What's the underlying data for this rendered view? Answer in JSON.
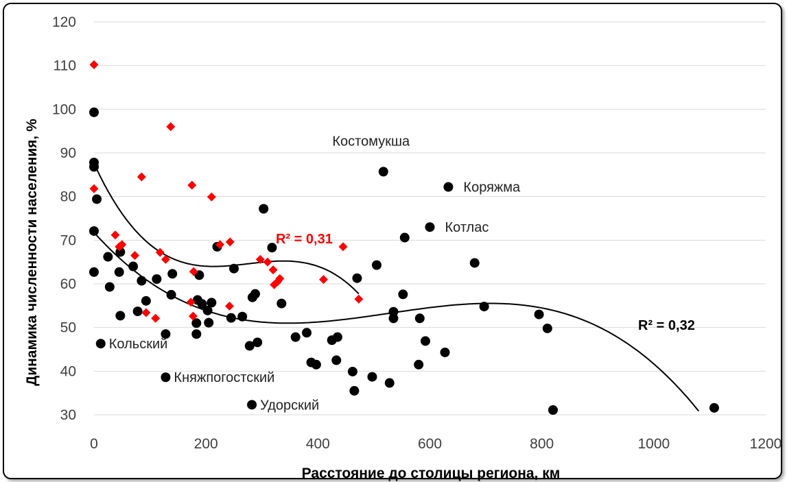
{
  "chart_data": {
    "type": "scatter",
    "title": "",
    "xlabel": "Расстояние до столицы региона, км",
    "ylabel": "Динамика численности населения, %",
    "xlim": [
      0,
      1200
    ],
    "ylim": [
      30,
      120
    ],
    "xticks": [
      0,
      200,
      400,
      600,
      800,
      1000,
      1200
    ],
    "yticks": [
      30,
      40,
      50,
      60,
      70,
      80,
      90,
      100,
      110,
      120
    ],
    "grid": "horizontal",
    "legend": "none",
    "series": [
      {
        "marker": "circle",
        "color": "#000000",
        "r2": "R² = 0,32",
        "points": [
          [
            0,
            99.3
          ],
          [
            0,
            87.8
          ],
          [
            0,
            86.8
          ],
          [
            0,
            72.1
          ],
          [
            0,
            62.7
          ],
          [
            5,
            79.4
          ],
          [
            12,
            46.3
          ],
          [
            25,
            66.2
          ],
          [
            28,
            59.3
          ],
          [
            45,
            62.7
          ],
          [
            47,
            67.3
          ],
          [
            47,
            52.7
          ],
          [
            70,
            64.0
          ],
          [
            78,
            53.7
          ],
          [
            85,
            60.7
          ],
          [
            93,
            56.1
          ],
          [
            112,
            61.1
          ],
          [
            128,
            48.5
          ],
          [
            128,
            38.6
          ],
          [
            138,
            57.5
          ],
          [
            140,
            62.3
          ],
          [
            183,
            48.5
          ],
          [
            183,
            51.0
          ],
          [
            185,
            56.3
          ],
          [
            188,
            62.0
          ],
          [
            193,
            55.4
          ],
          [
            203,
            53.9
          ],
          [
            205,
            51.1
          ],
          [
            210,
            55.7
          ],
          [
            220,
            68.5
          ],
          [
            245,
            52.2
          ],
          [
            250,
            63.5
          ],
          [
            265,
            52.5
          ],
          [
            278,
            45.8
          ],
          [
            282,
            32.3
          ],
          [
            283,
            56.9
          ],
          [
            288,
            57.7
          ],
          [
            292,
            46.6
          ],
          [
            303,
            77.2
          ],
          [
            318,
            68.3
          ],
          [
            335,
            55.5
          ],
          [
            360,
            47.8
          ],
          [
            380,
            48.8
          ],
          [
            388,
            42.0
          ],
          [
            397,
            41.5
          ],
          [
            425,
            47.1
          ],
          [
            433,
            42.5
          ],
          [
            435,
            47.8
          ],
          [
            462,
            39.9
          ],
          [
            465,
            35.5
          ],
          [
            470,
            61.3
          ],
          [
            497,
            38.7
          ],
          [
            505,
            64.3
          ],
          [
            517,
            85.7
          ],
          [
            528,
            37.3
          ],
          [
            535,
            52.1
          ],
          [
            535,
            53.6
          ],
          [
            555,
            70.6
          ],
          [
            552,
            57.6
          ],
          [
            580,
            41.5
          ],
          [
            582,
            52.1
          ],
          [
            592,
            46.9
          ],
          [
            600,
            73.0
          ],
          [
            627,
            44.3
          ],
          [
            633,
            82.2
          ],
          [
            680,
            64.8
          ],
          [
            697,
            54.8
          ],
          [
            795,
            53.0
          ],
          [
            810,
            49.8
          ],
          [
            820,
            31.1
          ],
          [
            1108,
            31.6
          ]
        ],
        "labels": [
          {
            "x": 12,
            "y": 46.3,
            "text": "Кольский"
          },
          {
            "x": 128,
            "y": 38.6,
            "text": "Княжпогостский"
          },
          {
            "x": 282,
            "y": 32.3,
            "text": "Удорский"
          },
          {
            "x": 517,
            "y": 85.7,
            "text": "Костомукша"
          },
          {
            "x": 633,
            "y": 82.2,
            "text": "Коряжма"
          },
          {
            "x": 600,
            "y": 73.0,
            "text": "Котлас"
          }
        ]
      },
      {
        "marker": "diamond",
        "color": "#ff0000",
        "r2": "R² = 0,31",
        "points": [
          [
            0,
            110.2
          ],
          [
            0,
            81.8
          ],
          [
            38,
            71.2
          ],
          [
            45,
            68.5
          ],
          [
            50,
            69.0
          ],
          [
            73,
            66.5
          ],
          [
            85,
            84.5
          ],
          [
            93,
            53.4
          ],
          [
            110,
            52.1
          ],
          [
            118,
            67.2
          ],
          [
            128,
            65.6
          ],
          [
            137,
            96.0
          ],
          [
            173,
            55.8
          ],
          [
            175,
            82.6
          ],
          [
            177,
            52.6
          ],
          [
            178,
            62.8
          ],
          [
            210,
            79.9
          ],
          [
            225,
            69.0
          ],
          [
            242,
            54.9
          ],
          [
            243,
            69.6
          ],
          [
            297,
            65.6
          ],
          [
            310,
            65.0
          ],
          [
            320,
            63.2
          ],
          [
            322,
            59.8
          ],
          [
            328,
            60.5
          ],
          [
            332,
            61.2
          ],
          [
            410,
            61.0
          ],
          [
            445,
            68.5
          ],
          [
            473,
            56.5
          ]
        ],
        "labels": []
      }
    ],
    "annotations": [
      {
        "text": "R² = 0,31",
        "color": "#ff0000"
      },
      {
        "text": "R² = 0,32",
        "color": "#000000"
      }
    ]
  }
}
